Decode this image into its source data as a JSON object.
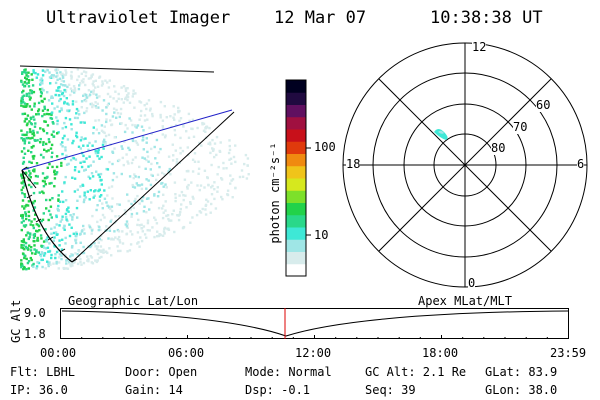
{
  "header": {
    "instrument": "Ultraviolet Imager",
    "date": "12 Mar 07",
    "time": "10:38:38 UT"
  },
  "colorbar": {
    "unit_label": "photon cm⁻²s⁻¹",
    "ticks": [
      "100",
      "10"
    ],
    "colors": [
      "#ffffff",
      "#d8ecec",
      "#9fe6e6",
      "#3ee8d6",
      "#2ad88a",
      "#22d24a",
      "#7de02a",
      "#d6e81e",
      "#f0c41a",
      "#f08a10",
      "#e03a0c",
      "#c8101a",
      "#a01040",
      "#601060",
      "#200a40",
      "#000020"
    ]
  },
  "polar": {
    "mlt_labels": {
      "top": "12",
      "left": "18",
      "right": "6",
      "bottom": "0"
    },
    "lat_labels": [
      "60",
      "70",
      "80"
    ]
  },
  "alt_panel": {
    "left_title": "Geographic Lat/Lon",
    "right_title": "Apex MLat/MLT",
    "axis_label": "GC Alt",
    "y_ticks": [
      "9.0",
      "1.8"
    ],
    "x_ticks": [
      "00:00",
      "06:00",
      "12:00",
      "18:00",
      "23:59"
    ],
    "current_time_fraction": 0.442,
    "marker_color": "#dd0000"
  },
  "status": {
    "flt": "Flt: LBHL",
    "ip": "IP: 36.0",
    "door": "Door: Open",
    "gain": "Gain: 14",
    "mode": "Mode: Normal",
    "dsp": "Dsp:   -0.1",
    "gc_alt": "GC Alt: 2.1 Re",
    "seq": "Seq: 39",
    "glat": "GLat:  83.9",
    "glon": "GLon:  38.0"
  }
}
